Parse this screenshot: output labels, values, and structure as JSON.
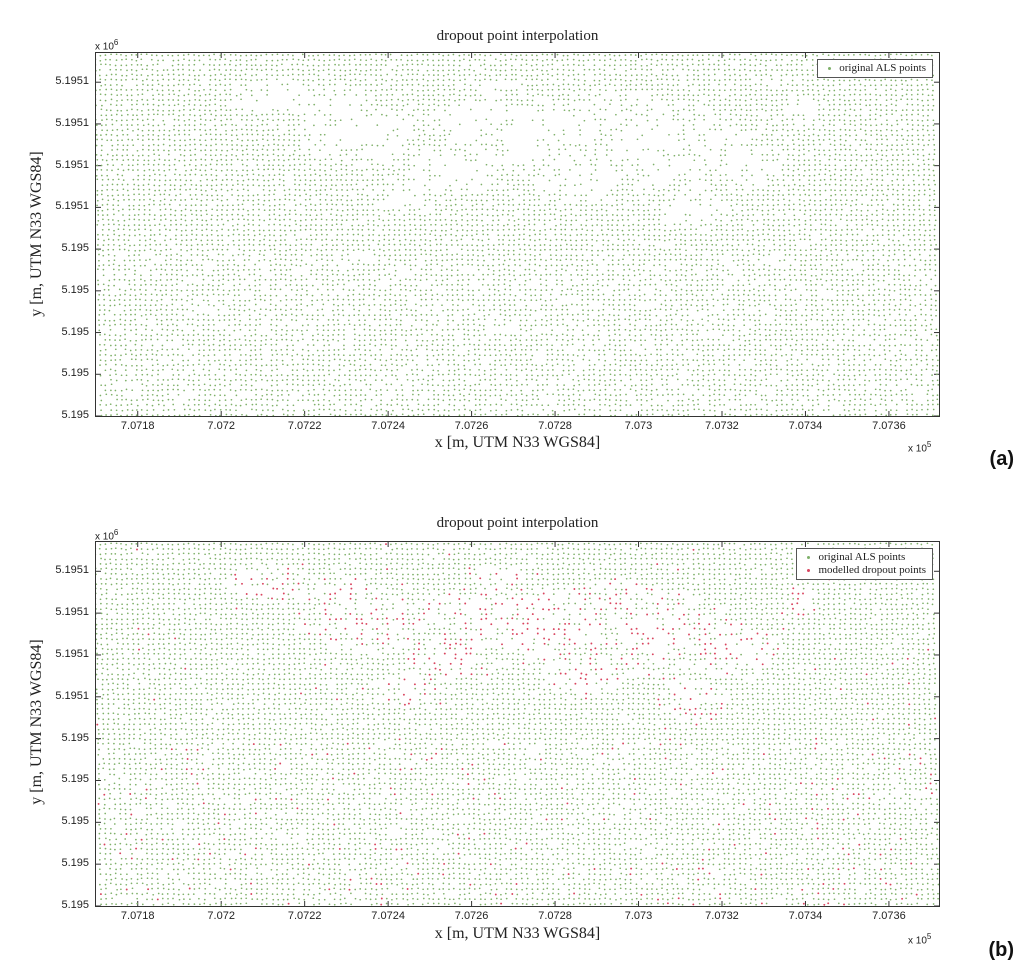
{
  "chart_data": [
    {
      "type": "scatter",
      "panel_label": "(a)",
      "title": "dropout point interpolation",
      "xlabel": "x [m, UTM N33 WGS84]",
      "ylabel": "y [m, UTM N33 WGS84]",
      "x_multiplier": "x 10",
      "x_multiplier_exp": "5",
      "y_multiplier": "x 10",
      "y_multiplier_exp": "6",
      "x_ticks": [
        "7.0718",
        "7.072",
        "7.0722",
        "7.0724",
        "7.0726",
        "7.0728",
        "7.073",
        "7.0732",
        "7.0734",
        "7.0736"
      ],
      "x_tick_values": [
        707180,
        707200,
        707220,
        707240,
        707260,
        707280,
        707300,
        707320,
        707340,
        707360
      ],
      "xlim": [
        707170,
        707372
      ],
      "y_ticks": [
        "5.1951",
        "5.1951",
        "5.1951",
        "5.1951",
        "5.195",
        "5.195",
        "5.195",
        "5.195",
        "5.195"
      ],
      "y_tick_values": [
        5195140,
        5195130,
        5195120,
        5195110,
        5195100,
        5195090,
        5195080,
        5195070,
        5195060
      ],
      "ylim": [
        5195060,
        5195147
      ],
      "grid": false,
      "legend_position": "top-right",
      "series": [
        {
          "name": "original ALS points",
          "color": "#7fb06a"
        }
      ]
    },
    {
      "type": "scatter",
      "panel_label": "(b)",
      "title": "dropout point interpolation",
      "xlabel": "x [m, UTM N33 WGS84]",
      "ylabel": "y [m, UTM N33 WGS84]",
      "x_multiplier": "x 10",
      "x_multiplier_exp": "5",
      "y_multiplier": "x 10",
      "y_multiplier_exp": "6",
      "x_ticks": [
        "7.0718",
        "7.072",
        "7.0722",
        "7.0724",
        "7.0726",
        "7.0728",
        "7.073",
        "7.0732",
        "7.0734",
        "7.0736"
      ],
      "x_tick_values": [
        707180,
        707200,
        707220,
        707240,
        707260,
        707280,
        707300,
        707320,
        707340,
        707360
      ],
      "xlim": [
        707170,
        707372
      ],
      "y_ticks": [
        "5.1951",
        "5.1951",
        "5.1951",
        "5.1951",
        "5.195",
        "5.195",
        "5.195",
        "5.195",
        "5.195"
      ],
      "y_tick_values": [
        5195140,
        5195130,
        5195120,
        5195110,
        5195100,
        5195090,
        5195080,
        5195070,
        5195060
      ],
      "ylim": [
        5195060,
        5195147
      ],
      "grid": false,
      "legend_position": "top-right",
      "series": [
        {
          "name": "original ALS points",
          "color": "#7fb06a"
        },
        {
          "name": "modelled dropout points",
          "color": "#d9455f"
        }
      ]
    }
  ]
}
